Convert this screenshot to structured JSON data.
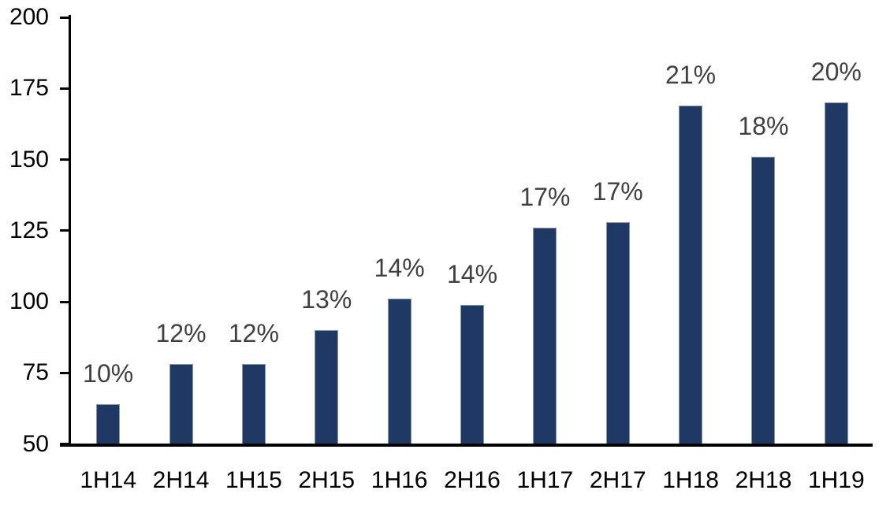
{
  "chart_data": {
    "type": "bar",
    "categories": [
      "1H14",
      "2H14",
      "1H15",
      "2H15",
      "1H16",
      "2H16",
      "1H17",
      "2H17",
      "1H18",
      "2H18",
      "1H19"
    ],
    "values": [
      64,
      78,
      78,
      90,
      101,
      99,
      126,
      128,
      169,
      151,
      170
    ],
    "data_labels": [
      "10%",
      "12%",
      "12%",
      "13%",
      "14%",
      "14%",
      "17%",
      "17%",
      "21%",
      "18%",
      "20%"
    ],
    "title": "",
    "xlabel": "",
    "ylabel": "",
    "ylim": [
      50,
      200
    ],
    "yticks": [
      50,
      75,
      100,
      125,
      150,
      175,
      200
    ],
    "grid": false,
    "legend": false,
    "colors": {
      "bar_fill": "#1F3864",
      "bar_border": "#8496B0",
      "data_label": "#404040",
      "axis_text": "#000000",
      "axis_line": "#000000"
    }
  }
}
